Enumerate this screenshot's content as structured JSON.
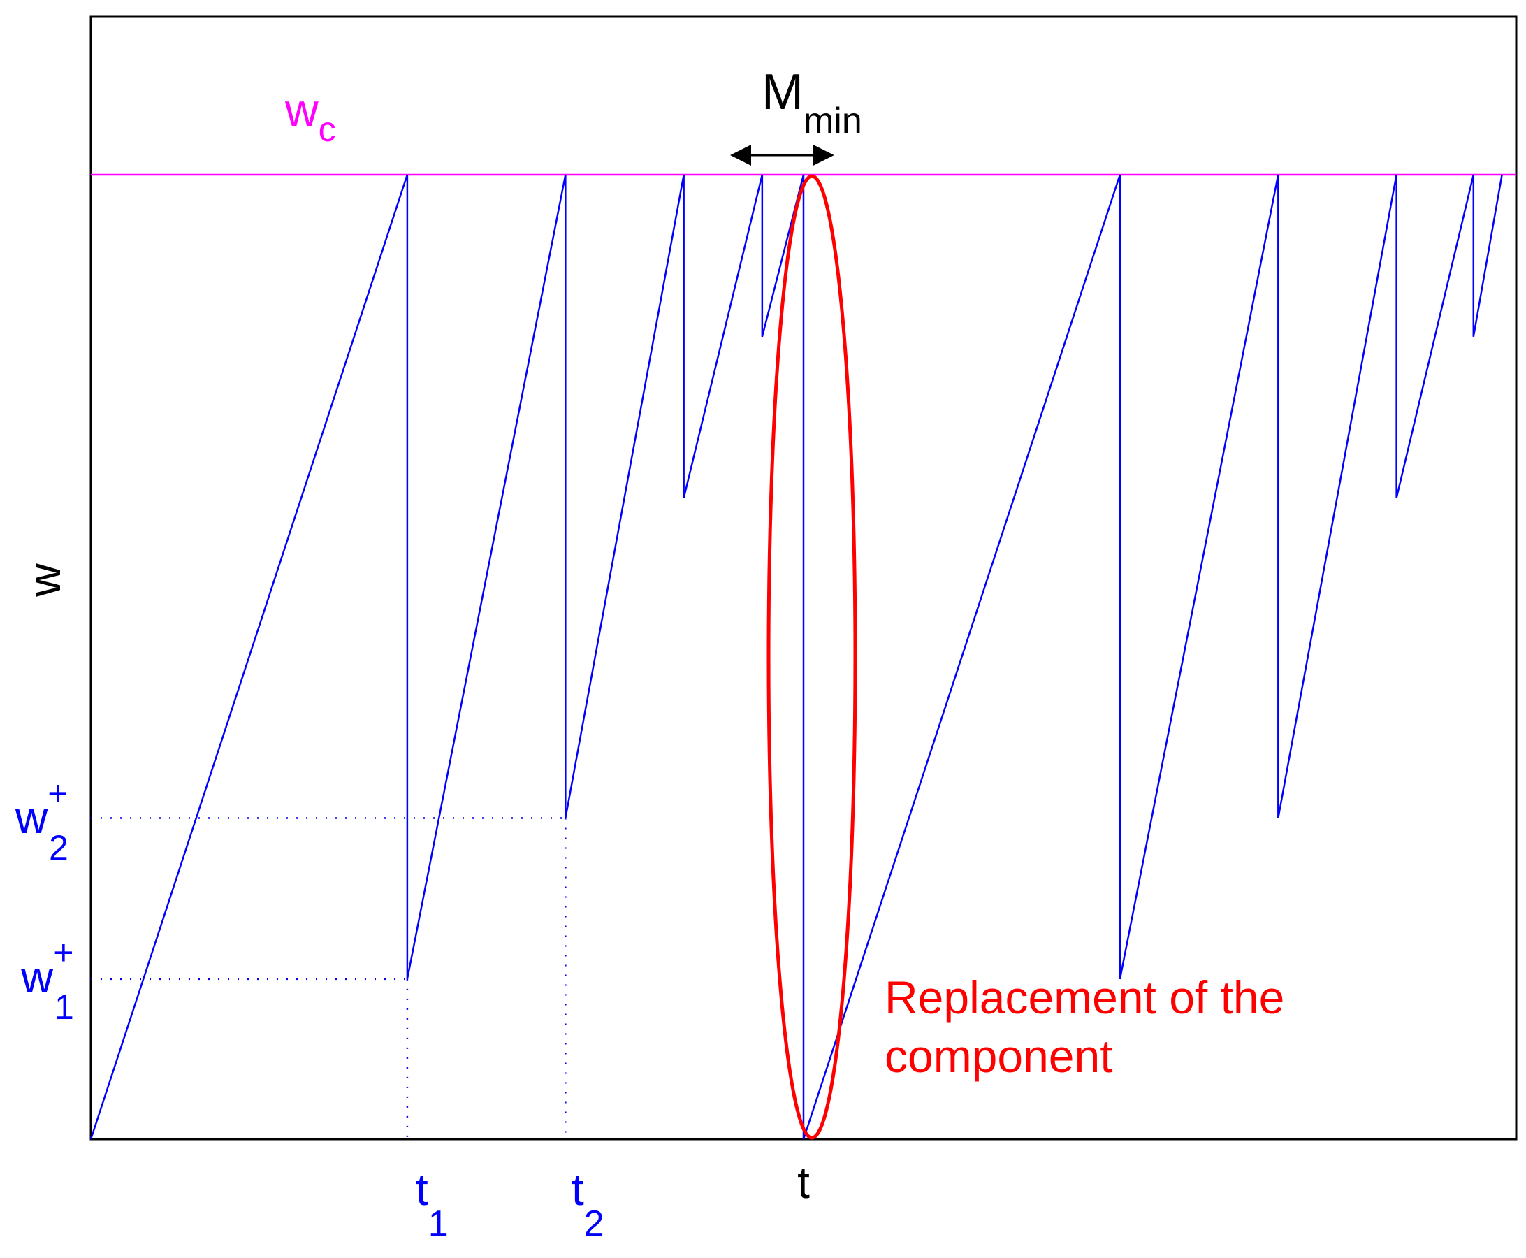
{
  "chart_data": {
    "type": "line",
    "title": "",
    "xlabel": "",
    "ylabel": "w",
    "xlim": [
      0,
      1
    ],
    "ylim": [
      0,
      1
    ],
    "grid": false,
    "series": [
      {
        "color": "#0000ff",
        "points": [
          [
            0.0,
            0.0
          ],
          [
            0.222,
            1.0
          ],
          [
            0.222,
            0.166
          ],
          [
            0.333,
            1.0
          ],
          [
            0.333,
            0.333
          ],
          [
            0.416,
            1.0
          ],
          [
            0.416,
            0.665
          ],
          [
            0.471,
            1.0
          ],
          [
            0.471,
            0.832
          ],
          [
            0.5,
            1.0
          ],
          [
            0.5,
            0.0
          ],
          [
            0.722,
            1.0
          ],
          [
            0.722,
            0.166
          ],
          [
            0.833,
            1.0
          ],
          [
            0.833,
            0.333
          ],
          [
            0.916,
            1.0
          ],
          [
            0.916,
            0.665
          ],
          [
            0.97,
            1.0
          ],
          [
            0.97,
            0.832
          ],
          [
            0.99,
            1.0
          ]
        ]
      }
    ],
    "threshold": {
      "label": "w",
      "label_sub": "c",
      "y": 1.0,
      "color": "#ff00ff"
    },
    "y_marks": [
      {
        "label": "w",
        "sup": "+",
        "sub": "1",
        "y": 0.166,
        "x_end": 0.222,
        "color": "#0000ff"
      },
      {
        "label": "w",
        "sup": "+",
        "sub": "2",
        "y": 0.333,
        "x_end": 0.333,
        "color": "#0000ff"
      }
    ],
    "x_marks": [
      {
        "label": "t",
        "sub": "1",
        "x": 0.222,
        "dotted": true,
        "color": "#0000ff"
      },
      {
        "label": "t",
        "sub": "2",
        "x": 0.333,
        "dotted": true,
        "color": "#0000ff"
      },
      {
        "label": "t",
        "sub": "",
        "x": 0.5,
        "dotted": false,
        "color": "#000000"
      }
    ],
    "annotations": [
      {
        "kind": "double-arrow",
        "label": "M",
        "label_sub": "min",
        "x_from": 0.45,
        "x_to": 0.52,
        "color": "#000000"
      },
      {
        "kind": "ellipse",
        "x": 0.5,
        "color": "#ff0000"
      },
      {
        "kind": "text",
        "lines": [
          "Replacement of the",
          "component"
        ],
        "color": "#ff0000"
      }
    ]
  }
}
